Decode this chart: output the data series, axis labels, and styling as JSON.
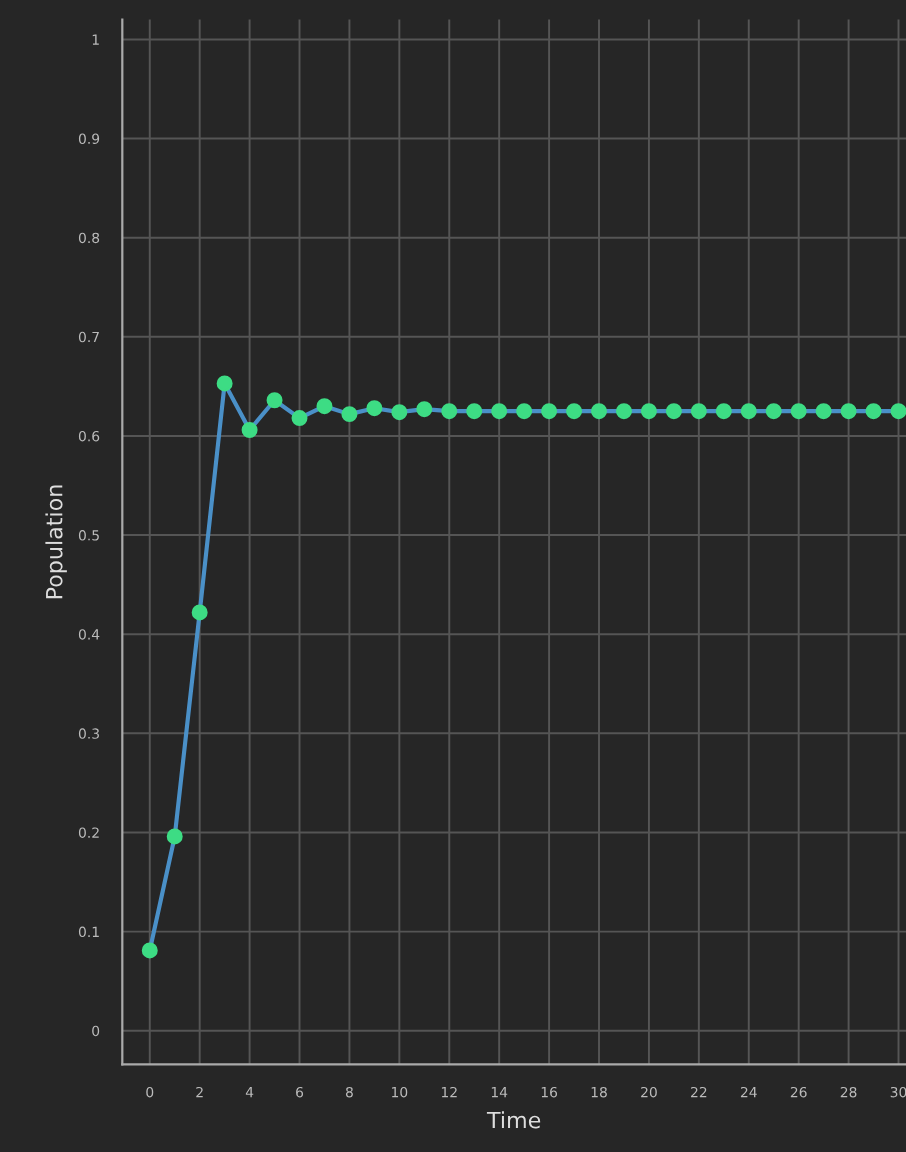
{
  "chart_data": {
    "type": "line",
    "xlabel": "Time",
    "ylabel": "Population",
    "x": [
      0,
      1,
      2,
      3,
      4,
      5,
      6,
      7,
      8,
      9,
      10,
      11,
      12,
      13,
      14,
      15,
      16,
      17,
      18,
      19,
      20,
      21,
      22,
      23,
      24,
      25,
      26,
      27,
      28,
      29,
      30
    ],
    "series": [
      {
        "color": "#4a90c8",
        "values": [
          0.081,
          0.196,
          0.422,
          0.653,
          0.606,
          0.636,
          0.618,
          0.63,
          0.622,
          0.628,
          0.624,
          0.627,
          0.625,
          0.625,
          0.625,
          0.625,
          0.625,
          0.625,
          0.625,
          0.625,
          0.625,
          0.625,
          0.625,
          0.625,
          0.625,
          0.625,
          0.625,
          0.625,
          0.625,
          0.625,
          0.625
        ]
      }
    ],
    "marker": "circle",
    "line_style": "solid",
    "grid": true,
    "legend": false,
    "xlim": [
      -1.1,
      30.3
    ],
    "ylim": [
      -0.034,
      1.02
    ],
    "xticks": [
      0,
      2,
      4,
      6,
      8,
      10,
      12,
      14,
      16,
      18,
      20,
      22,
      24,
      26,
      28,
      30
    ],
    "yticks": [
      0,
      0.1,
      0.2,
      0.3,
      0.4,
      0.5,
      0.6,
      0.7,
      0.8,
      0.9,
      1
    ]
  }
}
